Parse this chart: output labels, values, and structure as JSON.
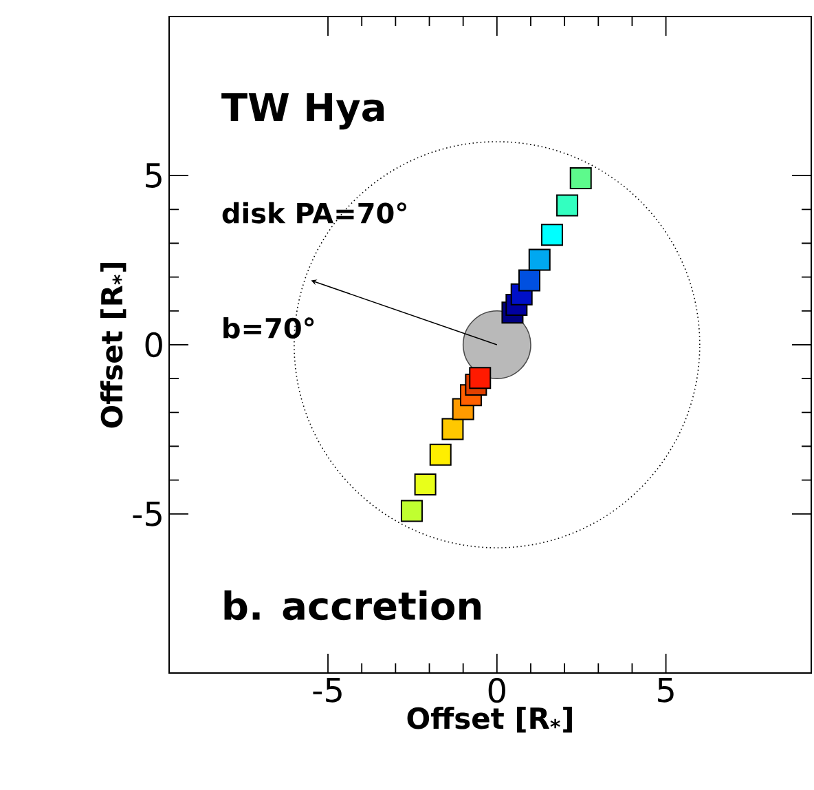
{
  "chart_data": {
    "type": "scatter",
    "title": "TW Hya",
    "xlabel": "Offset [R$_{*}$]",
    "ylabel": "Offset [R$_{*}$]",
    "annotations": [
      "disk PA=70°",
      "b=70°",
      "b. accretion"
    ],
    "x": [
      -2.52,
      -2.12,
      -1.67,
      -1.31,
      -1.0,
      -0.77,
      -0.62,
      -0.5,
      0.46,
      0.58,
      0.73,
      0.96,
      1.26,
      1.63,
      2.08,
      2.48
    ],
    "values": [
      -4.91,
      -4.13,
      -3.25,
      -2.49,
      -1.9,
      -1.49,
      -1.18,
      -0.98,
      0.95,
      1.18,
      1.49,
      1.9,
      2.51,
      3.25,
      4.12,
      4.92
    ],
    "colors": [
      "#c0ff30",
      "#e8ff1a",
      "#ffee00",
      "#ffc800",
      "#ff9a00",
      "#ff6000",
      "#e04000",
      "#ff1a00",
      "#000080",
      "#0000a0",
      "#0010c8",
      "#0050e0",
      "#00a8f0",
      "#00ffff",
      "#33ffc0",
      "#5dfa8c"
    ],
    "marker": "square",
    "xlim": [
      -9.7,
      9.3
    ],
    "ylim": [
      -9.7,
      9.7
    ],
    "xticks": [
      -5,
      0,
      5
    ],
    "yticks": [
      -5,
      0,
      5
    ]
  }
}
